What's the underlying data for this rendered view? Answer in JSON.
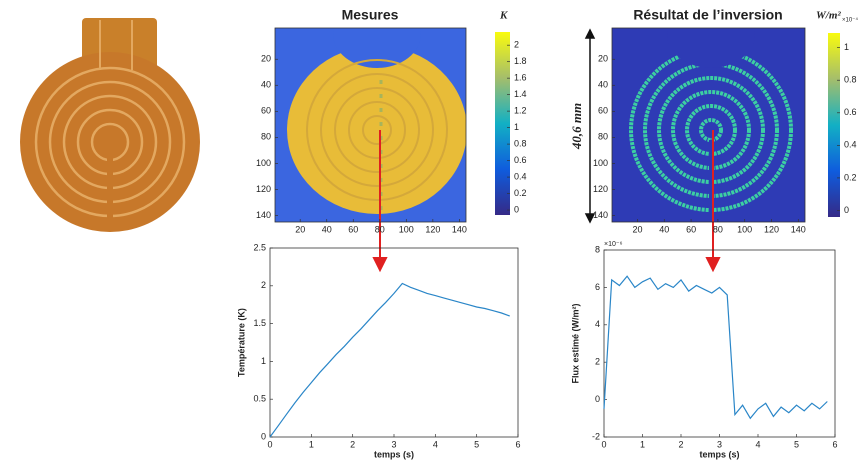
{
  "chart_data": [
    {
      "type": "heatmap",
      "title": "Mesures",
      "colorbar_unit": "K",
      "xlim": [
        1,
        145
      ],
      "ylim": [
        -4,
        145
      ],
      "yreverse": true,
      "xticks": [
        20,
        40,
        60,
        80,
        100,
        120,
        140
      ],
      "yticks": [
        20,
        40,
        60,
        80,
        100,
        120,
        140
      ],
      "clim": [
        -0.06,
        2.16
      ],
      "cticks": [
        0,
        0.2,
        0.4,
        0.6,
        0.8,
        1,
        1.2,
        1.4,
        1.6,
        1.8,
        2
      ]
    },
    {
      "type": "heatmap",
      "title": "Résultat de l’inversion",
      "colorbar_unit": "W/m²",
      "colorbar_multiplier": "×10⁻⁴",
      "annotation": "40,6 mm",
      "xlim": [
        1,
        145
      ],
      "ylim": [
        -4,
        145
      ],
      "yreverse": true,
      "xticks": [
        20,
        40,
        60,
        80,
        100,
        120,
        140
      ],
      "yticks": [
        20,
        40,
        60,
        80,
        100,
        120,
        140
      ],
      "clim": [
        -0.04,
        1.09
      ],
      "cticks": [
        0,
        0.2,
        0.4,
        0.6,
        0.8,
        1
      ]
    },
    {
      "type": "line",
      "xlabel": "temps (s)",
      "ylabel": "Température (K)",
      "color": "#2a86c8",
      "x": [
        0,
        0.2,
        0.4,
        0.6,
        0.8,
        1,
        1.2,
        1.4,
        1.6,
        1.8,
        2,
        2.2,
        2.4,
        2.6,
        2.8,
        3,
        3.2,
        3.4,
        3.6,
        3.8,
        4,
        4.2,
        4.4,
        4.6,
        4.8,
        5,
        5.2,
        5.4,
        5.6,
        5.8
      ],
      "values": [
        0,
        0.15,
        0.3,
        0.45,
        0.59,
        0.72,
        0.85,
        0.97,
        1.09,
        1.2,
        1.32,
        1.43,
        1.55,
        1.67,
        1.78,
        1.9,
        2.03,
        1.98,
        1.94,
        1.9,
        1.87,
        1.84,
        1.81,
        1.78,
        1.75,
        1.72,
        1.7,
        1.67,
        1.64,
        1.6
      ],
      "xlim": [
        0,
        6
      ],
      "ylim": [
        0,
        2.5
      ],
      "xticks": [
        0,
        1,
        2,
        3,
        4,
        5,
        6
      ],
      "yticks": [
        0,
        0.5,
        1,
        1.5,
        2,
        2.5
      ]
    },
    {
      "type": "line",
      "xlabel": "temps (s)",
      "ylabel": "Flux estimé (W/m²)",
      "y_multiplier": "×10⁻⁶",
      "color": "#2a86c8",
      "x": [
        0,
        0.2,
        0.4,
        0.6,
        0.8,
        1,
        1.2,
        1.4,
        1.6,
        1.8,
        2,
        2.2,
        2.4,
        2.6,
        2.8,
        3,
        3.2,
        3.4,
        3.6,
        3.8,
        4,
        4.2,
        4.4,
        4.6,
        4.8,
        5,
        5.2,
        5.4,
        5.6,
        5.8
      ],
      "values": [
        -0.5,
        6.4,
        6.1,
        6.6,
        6.0,
        6.3,
        6.5,
        5.9,
        6.2,
        6.0,
        6.4,
        5.8,
        6.1,
        5.9,
        5.7,
        6.0,
        5.6,
        -0.8,
        -0.3,
        -1.0,
        -0.5,
        -0.2,
        -0.9,
        -0.4,
        -0.7,
        -0.3,
        -0.6,
        -0.2,
        -0.5,
        -0.1
      ],
      "xlim": [
        0,
        6
      ],
      "ylim": [
        -2,
        8
      ],
      "xticks": [
        0,
        1,
        2,
        3,
        4,
        5,
        6
      ],
      "yticks": [
        -2,
        0,
        2,
        4,
        6,
        8
      ]
    }
  ]
}
